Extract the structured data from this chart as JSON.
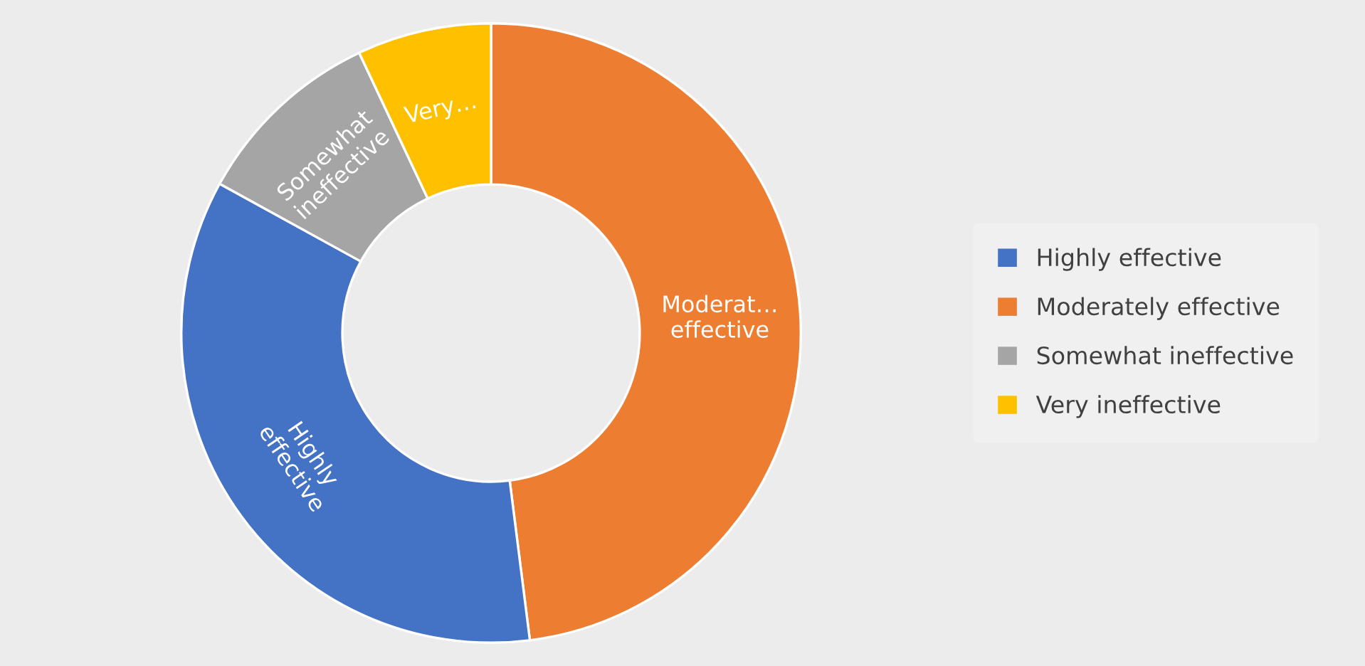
{
  "chart_data": {
    "type": "donut",
    "categories": [
      "Highly effective",
      "Moderately effective",
      "Somewhat ineffective",
      "Very ineffective"
    ],
    "values": [
      35,
      48,
      10,
      7
    ],
    "colors": [
      "#4472c4",
      "#ed7d31",
      "#a5a5a5",
      "#ffc000"
    ],
    "value_labels": [
      "Highly\neffective",
      "Moderat…\neffective",
      "Somewhat\nineffective",
      "Very…"
    ],
    "legend": "right"
  }
}
